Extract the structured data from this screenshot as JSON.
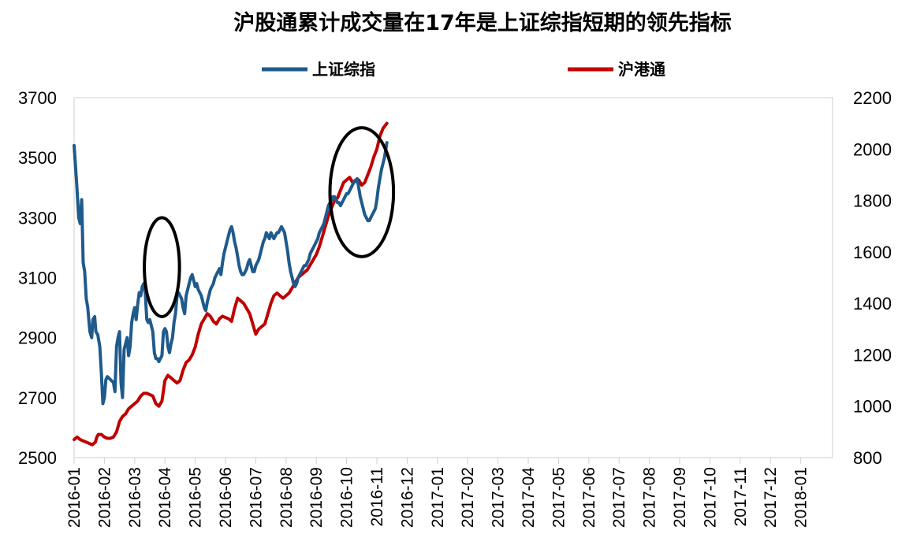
{
  "chart_data": {
    "type": "line",
    "title": "沪股通累计成交量在17年是上证综指短期的领先指标",
    "legend_position": "top",
    "grid": false,
    "x_categories": [
      "2016-01",
      "2016-02",
      "2016-03",
      "2016-04",
      "2016-05",
      "2016-06",
      "2016-07",
      "2016-08",
      "2016-09",
      "2016-10",
      "2016-11",
      "2016-12",
      "2017-01",
      "2017-02",
      "2017-03",
      "2017-04",
      "2017-05",
      "2017-06",
      "2017-07",
      "2017-08",
      "2017-09",
      "2017-10",
      "2017-11",
      "2017-12",
      "2018-01"
    ],
    "y_left": {
      "min": 2500,
      "max": 3700,
      "ticks": [
        2500,
        2700,
        2900,
        3100,
        3300,
        3500,
        3700
      ]
    },
    "y_right": {
      "min": 800,
      "max": 2200,
      "ticks": [
        800,
        1000,
        1200,
        1400,
        1600,
        1800,
        2000,
        2200
      ]
    },
    "series": [
      {
        "name": "上证综指",
        "axis": "left",
        "color": "#1f5a8c",
        "points": [
          [
            0.0,
            3540
          ],
          [
            0.08,
            3420
          ],
          [
            0.15,
            3300
          ],
          [
            0.2,
            3280
          ],
          [
            0.25,
            3360
          ],
          [
            0.3,
            3150
          ],
          [
            0.35,
            3120
          ],
          [
            0.4,
            3030
          ],
          [
            0.45,
            3000
          ],
          [
            0.52,
            2920
          ],
          [
            0.58,
            2900
          ],
          [
            0.62,
            2960
          ],
          [
            0.68,
            2970
          ],
          [
            0.72,
            2920
          ],
          [
            0.78,
            2910
          ],
          [
            0.85,
            2870
          ],
          [
            0.9,
            2780
          ],
          [
            0.95,
            2680
          ],
          [
            1.0,
            2700
          ],
          [
            1.05,
            2760
          ],
          [
            1.1,
            2770
          ],
          [
            1.2,
            2760
          ],
          [
            1.3,
            2750
          ],
          [
            1.35,
            2720
          ],
          [
            1.4,
            2870
          ],
          [
            1.45,
            2900
          ],
          [
            1.5,
            2920
          ],
          [
            1.55,
            2750
          ],
          [
            1.6,
            2700
          ],
          [
            1.65,
            2860
          ],
          [
            1.7,
            2880
          ],
          [
            1.75,
            2900
          ],
          [
            1.8,
            2840
          ],
          [
            1.85,
            2870
          ],
          [
            1.9,
            2950
          ],
          [
            1.95,
            2980
          ],
          [
            2.0,
            3000
          ],
          [
            2.05,
            2960
          ],
          [
            2.1,
            3010
          ],
          [
            2.15,
            3050
          ],
          [
            2.2,
            3040
          ],
          [
            2.25,
            3070
          ],
          [
            2.3,
            3080
          ],
          [
            2.35,
            3050
          ],
          [
            2.4,
            2960
          ],
          [
            2.45,
            2950
          ],
          [
            2.5,
            2960
          ],
          [
            2.55,
            2940
          ],
          [
            2.6,
            2920
          ],
          [
            2.65,
            2850
          ],
          [
            2.7,
            2830
          ],
          [
            2.75,
            2830
          ],
          [
            2.8,
            2820
          ],
          [
            2.85,
            2830
          ],
          [
            2.9,
            2840
          ],
          [
            2.95,
            2920
          ],
          [
            3.0,
            2930
          ],
          [
            3.05,
            2920
          ],
          [
            3.1,
            2870
          ],
          [
            3.15,
            2850
          ],
          [
            3.2,
            2880
          ],
          [
            3.25,
            2900
          ],
          [
            3.3,
            2950
          ],
          [
            3.35,
            2980
          ],
          [
            3.4,
            3040
          ],
          [
            3.45,
            3050
          ],
          [
            3.5,
            3040
          ],
          [
            3.55,
            3030
          ],
          [
            3.6,
            3000
          ],
          [
            3.65,
            2980
          ],
          [
            3.7,
            3040
          ],
          [
            3.75,
            3060
          ],
          [
            3.8,
            3080
          ],
          [
            3.85,
            3100
          ],
          [
            3.9,
            3110
          ],
          [
            3.95,
            3090
          ],
          [
            4.0,
            3070
          ],
          [
            4.05,
            3080
          ],
          [
            4.1,
            3060
          ],
          [
            4.15,
            3050
          ],
          [
            4.2,
            3040
          ],
          [
            4.25,
            3020
          ],
          [
            4.3,
            3000
          ],
          [
            4.35,
            2990
          ],
          [
            4.4,
            3020
          ],
          [
            4.45,
            3040
          ],
          [
            4.5,
            3060
          ],
          [
            4.55,
            3070
          ],
          [
            4.6,
            3080
          ],
          [
            4.65,
            3100
          ],
          [
            4.7,
            3110
          ],
          [
            4.75,
            3120
          ],
          [
            4.8,
            3130
          ],
          [
            4.85,
            3110
          ],
          [
            4.9,
            3150
          ],
          [
            4.95,
            3180
          ],
          [
            5.0,
            3200
          ],
          [
            5.05,
            3220
          ],
          [
            5.1,
            3240
          ],
          [
            5.15,
            3260
          ],
          [
            5.2,
            3270
          ],
          [
            5.25,
            3250
          ],
          [
            5.3,
            3220
          ],
          [
            5.35,
            3200
          ],
          [
            5.4,
            3170
          ],
          [
            5.45,
            3140
          ],
          [
            5.5,
            3120
          ],
          [
            5.55,
            3110
          ],
          [
            5.6,
            3110
          ],
          [
            5.65,
            3120
          ],
          [
            5.7,
            3130
          ],
          [
            5.75,
            3150
          ],
          [
            5.8,
            3160
          ],
          [
            5.85,
            3140
          ],
          [
            5.9,
            3120
          ],
          [
            5.95,
            3120
          ],
          [
            6.0,
            3140
          ],
          [
            6.05,
            3150
          ],
          [
            6.1,
            3160
          ],
          [
            6.15,
            3180
          ],
          [
            6.2,
            3200
          ],
          [
            6.25,
            3220
          ],
          [
            6.3,
            3230
          ],
          [
            6.35,
            3250
          ],
          [
            6.4,
            3240
          ],
          [
            6.45,
            3230
          ],
          [
            6.5,
            3250
          ],
          [
            6.55,
            3240
          ],
          [
            6.6,
            3230
          ],
          [
            6.65,
            3240
          ],
          [
            6.7,
            3250
          ],
          [
            6.75,
            3250
          ],
          [
            6.8,
            3260
          ],
          [
            6.85,
            3270
          ],
          [
            6.9,
            3260
          ],
          [
            6.95,
            3250
          ],
          [
            7.0,
            3220
          ],
          [
            7.05,
            3190
          ],
          [
            7.1,
            3150
          ],
          [
            7.15,
            3120
          ],
          [
            7.2,
            3100
          ],
          [
            7.25,
            3080
          ],
          [
            7.3,
            3070
          ],
          [
            7.35,
            3080
          ],
          [
            7.4,
            3100
          ],
          [
            7.45,
            3110
          ],
          [
            7.5,
            3120
          ],
          [
            7.55,
            3130
          ],
          [
            7.6,
            3140
          ],
          [
            7.65,
            3140
          ],
          [
            7.7,
            3150
          ],
          [
            7.75,
            3160
          ],
          [
            7.8,
            3180
          ],
          [
            7.85,
            3190
          ],
          [
            7.9,
            3200
          ],
          [
            7.95,
            3210
          ],
          [
            8.0,
            3220
          ],
          [
            8.05,
            3230
          ],
          [
            8.1,
            3250
          ],
          [
            8.15,
            3260
          ],
          [
            8.2,
            3270
          ],
          [
            8.25,
            3280
          ],
          [
            8.3,
            3300
          ],
          [
            8.35,
            3320
          ],
          [
            8.4,
            3340
          ],
          [
            8.45,
            3350
          ],
          [
            8.5,
            3360
          ],
          [
            8.55,
            3370
          ],
          [
            8.6,
            3370
          ],
          [
            8.65,
            3360
          ],
          [
            8.7,
            3350
          ],
          [
            8.75,
            3350
          ],
          [
            8.8,
            3340
          ],
          [
            8.85,
            3350
          ],
          [
            8.9,
            3360
          ],
          [
            8.95,
            3370
          ],
          [
            9.0,
            3380
          ],
          [
            9.05,
            3380
          ],
          [
            9.1,
            3390
          ],
          [
            9.15,
            3400
          ],
          [
            9.2,
            3410
          ],
          [
            9.25,
            3420
          ],
          [
            9.3,
            3420
          ],
          [
            9.35,
            3430
          ],
          [
            9.4,
            3400
          ],
          [
            9.45,
            3370
          ],
          [
            9.5,
            3350
          ],
          [
            9.55,
            3330
          ],
          [
            9.6,
            3310
          ],
          [
            9.65,
            3300
          ],
          [
            9.7,
            3290
          ],
          [
            9.75,
            3290
          ],
          [
            9.8,
            3300
          ],
          [
            9.85,
            3310
          ],
          [
            9.9,
            3320
          ],
          [
            9.95,
            3330
          ],
          [
            10.0,
            3360
          ],
          [
            10.05,
            3400
          ],
          [
            10.1,
            3430
          ],
          [
            10.15,
            3460
          ],
          [
            10.2,
            3480
          ],
          [
            10.25,
            3500
          ],
          [
            10.3,
            3530
          ],
          [
            10.33,
            3550
          ]
        ]
      },
      {
        "name": "沪港通",
        "axis": "right",
        "color": "#c00000",
        "points": [
          [
            0.0,
            870
          ],
          [
            0.1,
            880
          ],
          [
            0.2,
            870
          ],
          [
            0.3,
            865
          ],
          [
            0.4,
            860
          ],
          [
            0.5,
            855
          ],
          [
            0.6,
            850
          ],
          [
            0.7,
            860
          ],
          [
            0.75,
            880
          ],
          [
            0.8,
            890
          ],
          [
            0.9,
            890
          ],
          [
            1.0,
            880
          ],
          [
            1.1,
            875
          ],
          [
            1.2,
            875
          ],
          [
            1.3,
            880
          ],
          [
            1.4,
            900
          ],
          [
            1.5,
            940
          ],
          [
            1.6,
            960
          ],
          [
            1.7,
            970
          ],
          [
            1.8,
            990
          ],
          [
            1.9,
            1000
          ],
          [
            2.0,
            1010
          ],
          [
            2.1,
            1020
          ],
          [
            2.2,
            1040
          ],
          [
            2.3,
            1050
          ],
          [
            2.4,
            1050
          ],
          [
            2.5,
            1045
          ],
          [
            2.6,
            1040
          ],
          [
            2.7,
            1010
          ],
          [
            2.8,
            1000
          ],
          [
            2.9,
            1020
          ],
          [
            3.0,
            1100
          ],
          [
            3.1,
            1120
          ],
          [
            3.2,
            1110
          ],
          [
            3.3,
            1100
          ],
          [
            3.4,
            1090
          ],
          [
            3.5,
            1100
          ],
          [
            3.6,
            1140
          ],
          [
            3.7,
            1170
          ],
          [
            3.8,
            1180
          ],
          [
            3.9,
            1200
          ],
          [
            4.0,
            1230
          ],
          [
            4.1,
            1280
          ],
          [
            4.2,
            1320
          ],
          [
            4.3,
            1340
          ],
          [
            4.4,
            1360
          ],
          [
            4.5,
            1350
          ],
          [
            4.6,
            1330
          ],
          [
            4.7,
            1320
          ],
          [
            4.8,
            1340
          ],
          [
            4.9,
            1350
          ],
          [
            5.0,
            1345
          ],
          [
            5.1,
            1340
          ],
          [
            5.2,
            1330
          ],
          [
            5.3,
            1380
          ],
          [
            5.4,
            1420
          ],
          [
            5.5,
            1410
          ],
          [
            5.6,
            1400
          ],
          [
            5.7,
            1380
          ],
          [
            5.8,
            1360
          ],
          [
            5.9,
            1320
          ],
          [
            6.0,
            1280
          ],
          [
            6.1,
            1300
          ],
          [
            6.2,
            1310
          ],
          [
            6.3,
            1320
          ],
          [
            6.4,
            1360
          ],
          [
            6.5,
            1400
          ],
          [
            6.6,
            1430
          ],
          [
            6.7,
            1440
          ],
          [
            6.8,
            1430
          ],
          [
            6.9,
            1420
          ],
          [
            7.0,
            1430
          ],
          [
            7.1,
            1440
          ],
          [
            7.2,
            1460
          ],
          [
            7.3,
            1480
          ],
          [
            7.4,
            1500
          ],
          [
            7.5,
            1510
          ],
          [
            7.6,
            1520
          ],
          [
            7.7,
            1530
          ],
          [
            7.8,
            1550
          ],
          [
            7.9,
            1570
          ],
          [
            8.0,
            1590
          ],
          [
            8.1,
            1620
          ],
          [
            8.2,
            1660
          ],
          [
            8.3,
            1700
          ],
          [
            8.4,
            1740
          ],
          [
            8.5,
            1770
          ],
          [
            8.6,
            1800
          ],
          [
            8.7,
            1810
          ],
          [
            8.8,
            1840
          ],
          [
            8.9,
            1870
          ],
          [
            9.0,
            1880
          ],
          [
            9.1,
            1890
          ],
          [
            9.2,
            1870
          ],
          [
            9.3,
            1880
          ],
          [
            9.4,
            1880
          ],
          [
            9.5,
            1860
          ],
          [
            9.6,
            1870
          ],
          [
            9.7,
            1900
          ],
          [
            9.8,
            1930
          ],
          [
            9.9,
            1970
          ],
          [
            10.0,
            2000
          ],
          [
            10.1,
            2050
          ],
          [
            10.2,
            2080
          ],
          [
            10.33,
            2100
          ]
        ]
      }
    ],
    "annotations": [
      {
        "type": "circle",
        "cx_month": 2.9,
        "cy_left": 3135,
        "rx_months": 0.58,
        "ry_left": 165
      },
      {
        "type": "circle",
        "cx_month": 9.5,
        "cy_left": 3385,
        "rx_months": 1.05,
        "ry_left": 215
      }
    ]
  }
}
